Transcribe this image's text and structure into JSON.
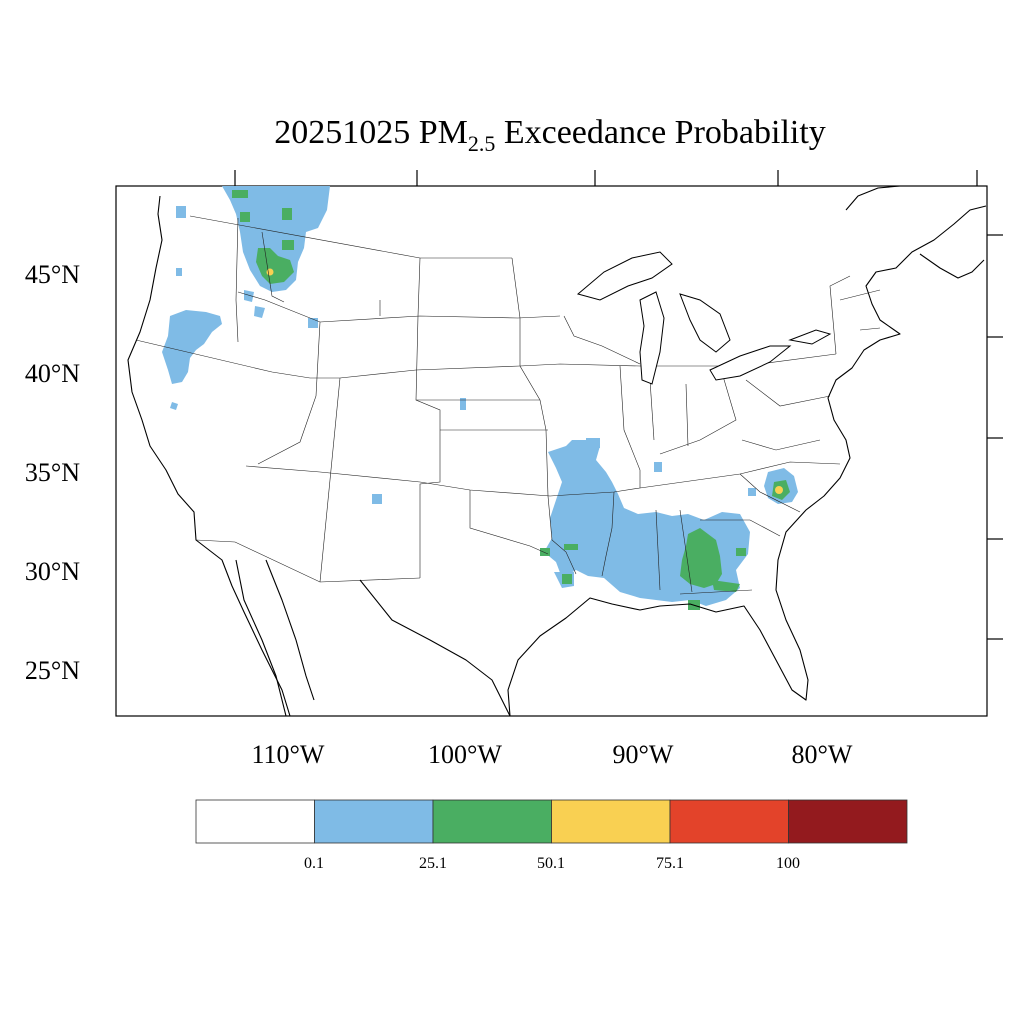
{
  "title": {
    "date": "20251025",
    "pm": "PM",
    "sub": "2.5",
    "rest": "Exceedance Probability"
  },
  "lat_labels": [
    "45°N",
    "40°N",
    "35°N",
    "30°N",
    "25°N"
  ],
  "lon_labels": [
    "110°W",
    "100°W",
    "90°W",
    "80°W"
  ],
  "legend": {
    "colors": [
      "#ffffff",
      "#7fbbe6",
      "#4aae62",
      "#f9d052",
      "#e3432a",
      "#931a1e"
    ],
    "labels": [
      "0.1",
      "25.1",
      "50.1",
      "75.1",
      "100"
    ]
  },
  "icons": {
    "map": "us-map-icon"
  }
}
